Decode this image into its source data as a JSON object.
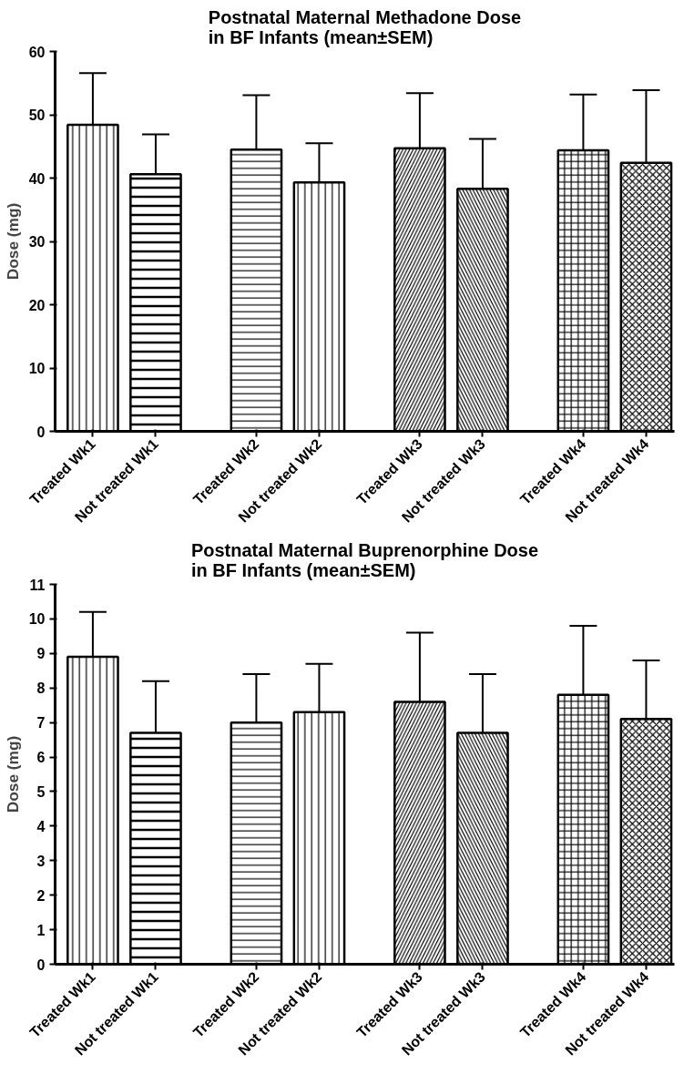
{
  "chart_data": [
    {
      "type": "bar",
      "title": "Postnatal Maternal Methadone Dose\nin BF Infants (mean±SEM)",
      "ylabel": "Dose (mg)",
      "categories": [
        "Treated Wk1",
        "Not treated Wk1",
        "Treated Wk2",
        "Not treated Wk2",
        "Treated Wk3",
        "Not treated Wk3",
        "Treated Wk4",
        "Not treated Wk4"
      ],
      "values": [
        48.4,
        40.6,
        44.5,
        39.3,
        44.7,
        38.3,
        44.4,
        42.4
      ],
      "errors": [
        [
          48.4,
          56.6
        ],
        [
          40.6,
          46.9
        ],
        [
          44.5,
          53.1
        ],
        [
          39.3,
          45.5
        ],
        [
          44.7,
          53.4
        ],
        [
          38.3,
          46.2
        ],
        [
          44.4,
          53.2
        ],
        [
          42.4,
          53.9
        ]
      ],
      "color": "#ffffff",
      "ylim": [
        0,
        60
      ],
      "yticks": [
        0,
        10,
        20,
        30,
        40,
        50,
        60
      ],
      "grid": false
    },
    {
      "type": "bar",
      "title": "Postnatal Maternal Buprenorphine Dose\nin BF Infants (mean±SEM)",
      "ylabel": "Dose (mg)",
      "categories": [
        "Treated Wk1",
        "Not treated Wk1",
        "Treated Wk2",
        "Not treated Wk2",
        "Treated Wk3",
        "Not treated Wk3",
        "Treated Wk4",
        "Not treated Wk4"
      ],
      "values": [
        8.9,
        6.7,
        7.0,
        7.3,
        7.6,
        6.7,
        7.8,
        7.1
      ],
      "errors": [
        [
          8.9,
          10.2
        ],
        [
          6.7,
          8.2
        ],
        [
          7.0,
          8.4
        ],
        [
          7.3,
          8.7
        ],
        [
          7.6,
          9.6
        ],
        [
          6.7,
          8.4
        ],
        [
          7.8,
          9.8
        ],
        [
          7.1,
          8.8
        ]
      ],
      "color": "#ffffff",
      "ylim": [
        0,
        11
      ],
      "yticks": [
        0,
        1,
        2,
        3,
        4,
        5,
        6,
        7,
        8,
        9,
        10,
        11
      ],
      "grid": false
    }
  ]
}
